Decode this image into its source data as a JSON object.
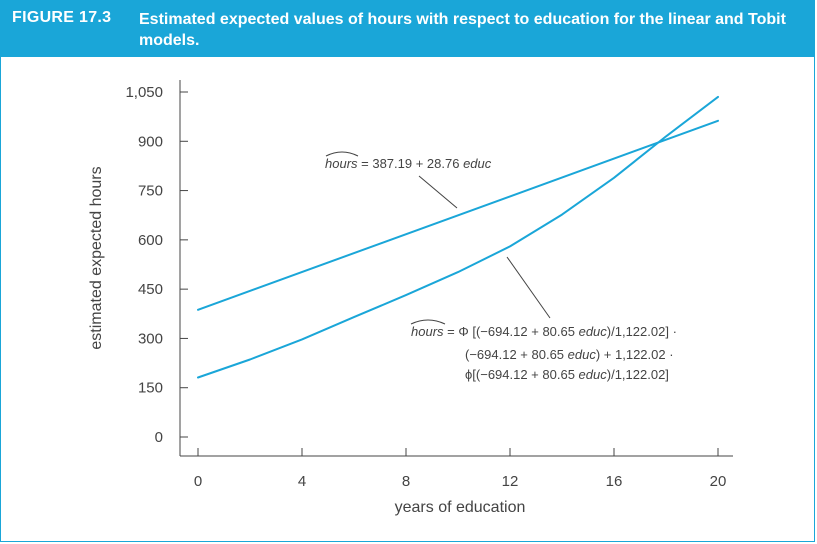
{
  "figure": {
    "label": "FIGURE 17.3",
    "title": "Estimated expected values of hours with respect to education for the linear and Tobit models.",
    "accent_color": "#1aa6d8"
  },
  "chart_data": {
    "type": "line",
    "xlabel": "years of education",
    "ylabel": "estimated expected hours",
    "xlim": [
      0,
      20
    ],
    "ylim": [
      0,
      1050
    ],
    "x_ticks": [
      0,
      4,
      8,
      12,
      16,
      20
    ],
    "x_tick_labels": [
      "0",
      "4",
      "8",
      "12",
      "16",
      "20"
    ],
    "y_ticks": [
      0,
      150,
      300,
      450,
      600,
      750,
      900,
      1050
    ],
    "y_tick_labels": [
      "0",
      "150",
      "300",
      "450",
      "600",
      "750",
      "900",
      "1,050"
    ],
    "grid": false,
    "line_color": "#1aa6d8",
    "series": [
      {
        "x": [
          0,
          20
        ],
        "y": [
          387.19,
          962.39
        ]
      },
      {
        "x": [
          0,
          2,
          4,
          6,
          8,
          10,
          12,
          14,
          16,
          18,
          20
        ],
        "y": [
          181,
          236,
          297,
          365,
          432,
          502,
          580,
          677,
          789,
          915,
          1035
        ]
      }
    ],
    "annotations": {
      "linear": {
        "hat": "hours",
        "equation": " = 387.19 + 28.76 ",
        "var": "educ"
      },
      "tobit": {
        "hat": "hours",
        "line1_a": " = Φ [(−694.12 + 80.65 ",
        "line1_var": "educ",
        "line1_b": ")/1,122.02] ·",
        "line2_a": "(−694.12 + 80.65 ",
        "line2_var": "educ",
        "line2_b": ") + 1,122.02 ·",
        "line3_a": "ϕ[(−694.12 + 80.65 ",
        "line3_var": "educ",
        "line3_b": ")/1,122.02]"
      }
    }
  }
}
